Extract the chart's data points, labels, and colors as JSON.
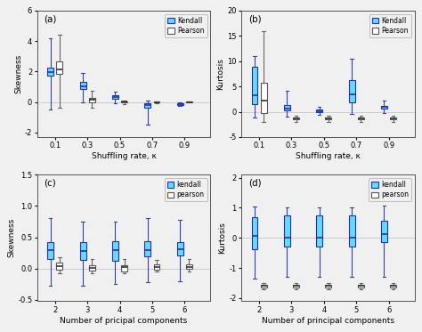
{
  "fig_facecolor": "#f0f0f0",
  "ax_facecolor": "#f0f0f0",
  "kendall_color": "#66d9ff",
  "pearson_color": "#ffffff",
  "kendall_edge": "#2233aa",
  "pearson_edge": "#555555",
  "median_color_kendall": "#2233aa",
  "median_color_pearson": "#333333",
  "whisker_color_kendall": "#3344bb",
  "whisker_color_pearson": "#666666",
  "box_width": 0.38,
  "panel_a": {
    "title": "(a)",
    "xlabel": "Shuffling rate, κ",
    "ylabel": "Skewness",
    "ylim": [
      -2.3,
      6
    ],
    "yticks": [
      -2,
      0,
      2,
      4,
      6
    ],
    "xtick_labels": [
      "0.1",
      "0.3",
      "0.5",
      "0.7",
      "0.9"
    ],
    "legend_labels": [
      "Kendall",
      "Pearson"
    ],
    "kendall_boxes": [
      [
        -0.5,
        1.75,
        1.95,
        2.25,
        4.2
      ],
      [
        0.0,
        0.85,
        1.05,
        1.3,
        1.9
      ],
      [
        -0.08,
        0.22,
        0.32,
        0.43,
        0.65
      ],
      [
        -1.5,
        -0.38,
        -0.2,
        -0.06,
        0.1
      ],
      [
        -0.28,
        -0.2,
        -0.15,
        -0.1,
        0.0
      ]
    ],
    "pearson_boxes": [
      [
        -0.4,
        1.85,
        2.15,
        2.65,
        4.4
      ],
      [
        -0.35,
        -0.05,
        0.15,
        0.28,
        0.72
      ],
      [
        -0.12,
        -0.02,
        0.02,
        0.04,
        0.1
      ],
      [
        -0.06,
        -0.01,
        0.0,
        0.01,
        0.06
      ],
      [
        -0.05,
        -0.01,
        0.0,
        0.01,
        0.04
      ]
    ]
  },
  "panel_b": {
    "title": "(b)",
    "xlabel": "Shuffling rate, κ",
    "ylabel": "Kurtosis",
    "ylim": [
      -5,
      20
    ],
    "yticks": [
      -5,
      0,
      5,
      10,
      15,
      20
    ],
    "xtick_labels": [
      "0.1",
      "0.3",
      "0.5",
      "0.7",
      "0.9"
    ],
    "legend_labels": [
      "Kendall",
      "Pearson"
    ],
    "kendall_boxes": [
      [
        -1.2,
        1.5,
        3.2,
        8.8,
        11.0
      ],
      [
        -1.0,
        0.2,
        0.6,
        1.4,
        4.2
      ],
      [
        -0.6,
        -0.1,
        0.1,
        0.4,
        0.9
      ],
      [
        -0.5,
        1.8,
        3.5,
        6.2,
        10.5
      ],
      [
        -0.2,
        0.7,
        1.0,
        1.2,
        2.2
      ]
    ],
    "pearson_boxes": [
      [
        -2.0,
        -0.2,
        2.2,
        5.8,
        16.0
      ],
      [
        -2.0,
        -1.5,
        -1.3,
        -1.1,
        -0.8
      ],
      [
        -2.0,
        -1.5,
        -1.3,
        -1.1,
        -0.8
      ],
      [
        -2.0,
        -1.5,
        -1.3,
        -1.1,
        -0.8
      ],
      [
        -2.0,
        -1.5,
        -1.3,
        -1.1,
        -0.8
      ]
    ]
  },
  "panel_c": {
    "title": "(c)",
    "xlabel": "Number of pricipal components",
    "ylabel": "Skewness",
    "ylim": [
      -0.52,
      1.5
    ],
    "yticks": [
      -0.5,
      0.0,
      0.5,
      1.0,
      1.5
    ],
    "xtick_labels": [
      "2",
      "3",
      "4",
      "5",
      "6"
    ],
    "legend_labels": [
      "kendall",
      "pearson"
    ],
    "kendall_boxes": [
      [
        -0.28,
        0.15,
        0.29,
        0.43,
        0.8
      ],
      [
        -0.27,
        0.14,
        0.28,
        0.42,
        0.75
      ],
      [
        -0.25,
        0.13,
        0.3,
        0.44,
        0.75
      ],
      [
        -0.22,
        0.2,
        0.3,
        0.44,
        0.8
      ],
      [
        -0.2,
        0.21,
        0.31,
        0.43,
        0.78
      ]
    ],
    "pearson_boxes": [
      [
        -0.07,
        -0.02,
        0.04,
        0.09,
        0.18
      ],
      [
        -0.08,
        -0.03,
        0.01,
        0.06,
        0.16
      ],
      [
        -0.08,
        -0.04,
        0.02,
        0.06,
        0.16
      ],
      [
        -0.05,
        -0.02,
        0.03,
        0.07,
        0.14
      ],
      [
        -0.05,
        -0.01,
        0.03,
        0.07,
        0.16
      ]
    ]
  },
  "panel_d": {
    "title": "(d)",
    "xlabel": "Number of principal components",
    "ylabel": "Kurtosis",
    "ylim": [
      -2.1,
      2.1
    ],
    "yticks": [
      -2,
      -1,
      0,
      1,
      2
    ],
    "xtick_labels": [
      "2",
      "3",
      "4",
      "5",
      "6"
    ],
    "legend_labels": [
      "kendall",
      "pearson"
    ],
    "kendall_boxes": [
      [
        -1.35,
        -0.38,
        0.08,
        0.68,
        1.05
      ],
      [
        -1.3,
        -0.3,
        0.0,
        0.75,
        1.02
      ],
      [
        -1.28,
        -0.28,
        0.0,
        0.75,
        1.02
      ],
      [
        -1.28,
        -0.28,
        0.0,
        0.75,
        1.02
      ],
      [
        -1.28,
        -0.14,
        0.12,
        0.58,
        1.08
      ]
    ],
    "pearson_boxes": [
      [
        -1.72,
        -1.65,
        -1.6,
        -1.55,
        -1.5
      ],
      [
        -1.72,
        -1.65,
        -1.6,
        -1.55,
        -1.5
      ],
      [
        -1.72,
        -1.65,
        -1.6,
        -1.55,
        -1.5
      ],
      [
        -1.72,
        -1.65,
        -1.6,
        -1.55,
        -1.5
      ],
      [
        -1.72,
        -1.65,
        -1.6,
        -1.55,
        -1.5
      ]
    ]
  }
}
